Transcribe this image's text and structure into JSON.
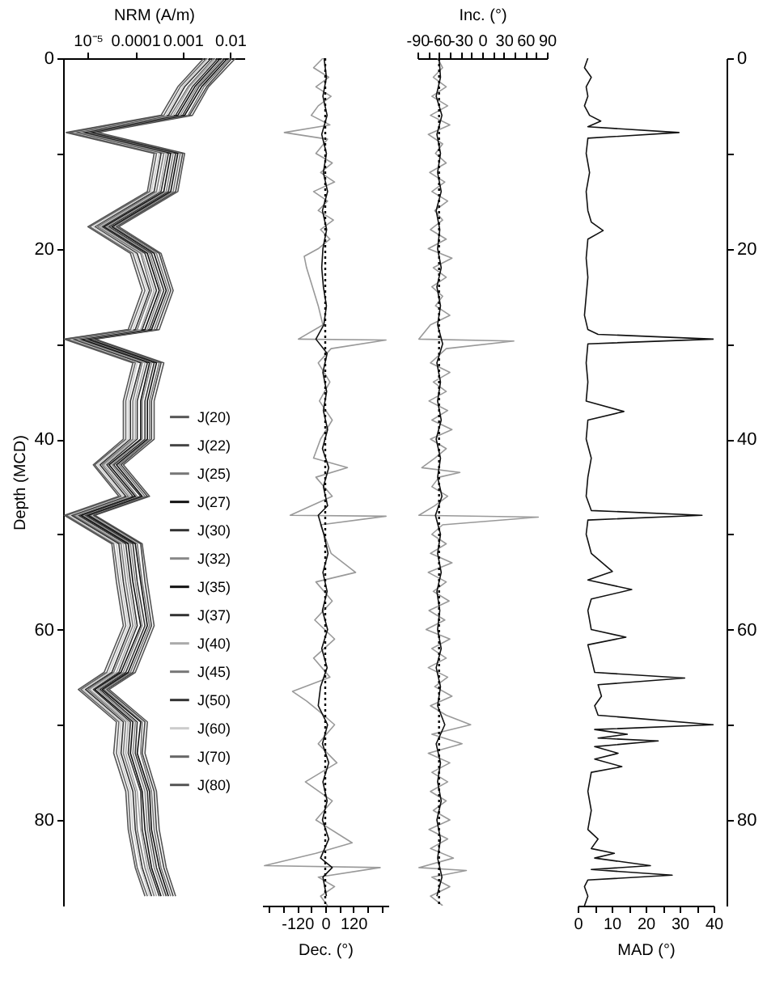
{
  "chart_data": [
    {
      "type": "line",
      "orientation": "horizontal",
      "log": "x",
      "xlabel": "NRM (A/m)",
      "ylabel": "Depth (MCD)",
      "xlim": [
        3e-06,
        0.02
      ],
      "xticks": [
        {
          "value": 1e-05,
          "label": "10⁻⁵"
        },
        0.0001,
        0.001,
        0.01
      ],
      "ylim": [
        89,
        0
      ],
      "yticks": [
        0,
        {
          "value": 10,
          "label": null
        },
        20,
        {
          "value": 30,
          "label": null
        },
        40,
        {
          "value": 50,
          "label": null
        },
        60,
        {
          "value": 70,
          "label": null
        },
        80
      ],
      "legend": "right",
      "x": [
        0,
        3,
        6,
        7.8,
        10,
        14,
        17.7,
        20.5,
        24.4,
        28.5,
        29.5,
        32,
        36,
        40,
        42.7,
        46,
        48,
        51,
        55,
        59.6,
        64.5,
        66.3,
        69.7,
        73,
        77,
        81,
        85,
        88
      ],
      "series": [
        {
          "name": "J(20)",
          "color": "#555555",
          "values": [
            0.013,
            0.0035,
            0.0016,
            1.6e-05,
            0.0011,
            0.00079,
            4.5e-05,
            0.00035,
            0.00063,
            0.00032,
            1.4e-05,
            0.0004,
            0.00025,
            0.00025,
            5.6e-05,
            0.0002,
            1.4e-05,
            0.00014,
            0.00018,
            0.00025,
            0.0001,
            2.8e-05,
            0.00018,
            0.00016,
            0.00028,
            0.00032,
            0.00045,
            0.00071
          ]
        },
        {
          "name": "J(22)",
          "color": "#444444",
          "values": [
            0.011,
            0.0032,
            0.0014,
            1.4e-05,
            0.001,
            0.00071,
            4e-05,
            0.00032,
            0.00056,
            0.00028,
            1.3e-05,
            0.00035,
            0.00022,
            0.00022,
            5e-05,
            0.00018,
            1.3e-05,
            0.00013,
            0.00016,
            0.00022,
            8.9e-05,
            2.5e-05,
            0.00016,
            0.00014,
            0.00025,
            0.00028,
            0.0004,
            0.00063
          ]
        },
        {
          "name": "J(25)",
          "color": "#777777",
          "values": [
            0.01,
            0.0028,
            0.0013,
            1.3e-05,
            0.00089,
            0.00063,
            3.5e-05,
            0.00028,
            0.0005,
            0.00025,
            1.1e-05,
            0.00032,
            0.0002,
            0.0002,
            4.5e-05,
            0.00016,
            1.1e-05,
            0.00011,
            0.00014,
            0.0002,
            7.9e-05,
            2.2e-05,
            0.00014,
            0.00013,
            0.00022,
            0.00025,
            0.00035,
            0.00056
          ]
        },
        {
          "name": "J(27)",
          "color": "#111111",
          "values": [
            0.0089,
            0.0025,
            0.0011,
            1.1e-05,
            0.00079,
            0.00056,
            3.2e-05,
            0.00025,
            0.00045,
            0.00022,
            1e-05,
            0.00028,
            0.00018,
            0.00018,
            4e-05,
            0.00014,
            1e-05,
            0.0001,
            0.00013,
            0.00018,
            7.1e-05,
            2e-05,
            0.00013,
            0.00011,
            0.0002,
            0.00022,
            0.00032,
            0.0005
          ]
        },
        {
          "name": "J(30)",
          "color": "#333333",
          "values": [
            0.0079,
            0.0022,
            0.001,
            1e-05,
            0.00071,
            0.0005,
            2.8e-05,
            0.00022,
            0.0004,
            0.0002,
            8.9e-06,
            0.00025,
            0.00016,
            0.00016,
            3.5e-05,
            0.00013,
            8.9e-06,
            8.9e-05,
            0.00011,
            0.00016,
            6.3e-05,
            1.8e-05,
            0.00011,
            0.0001,
            0.00018,
            0.0002,
            0.00028,
            0.00045
          ]
        },
        {
          "name": "J(32)",
          "color": "#888888",
          "values": [
            0.0071,
            0.002,
            0.00089,
            8.9e-06,
            0.00063,
            0.00045,
            2.5e-05,
            0.0002,
            0.00035,
            0.00018,
            7.9e-06,
            0.00022,
            0.00014,
            0.00014,
            3.2e-05,
            0.00011,
            7.9e-06,
            7.9e-05,
            0.0001,
            0.00014,
            5.6e-05,
            1.6e-05,
            0.0001,
            8.9e-05,
            0.00016,
            0.00018,
            0.00025,
            0.0004
          ]
        },
        {
          "name": "J(35)",
          "color": "#111111",
          "values": [
            0.0063,
            0.0018,
            0.00079,
            7.9e-06,
            0.00056,
            0.0004,
            2.2e-05,
            0.00018,
            0.00032,
            0.00016,
            7.1e-06,
            0.0002,
            0.00013,
            0.00013,
            2.8e-05,
            0.0001,
            7.1e-06,
            7.1e-05,
            8.9e-05,
            0.00013,
            5e-05,
            1.4e-05,
            8.9e-05,
            7.9e-05,
            0.00014,
            0.00016,
            0.00022,
            0.00035
          ]
        },
        {
          "name": "J(37)",
          "color": "#333333",
          "values": [
            0.0056,
            0.0016,
            0.00071,
            7.1e-06,
            0.0005,
            0.00035,
            2e-05,
            0.00016,
            0.00028,
            0.00014,
            6.3e-06,
            0.00018,
            0.00011,
            0.00011,
            2.5e-05,
            8.9e-05,
            6.3e-06,
            6.3e-05,
            7.9e-05,
            0.00011,
            4.5e-05,
            1.3e-05,
            7.9e-05,
            7.1e-05,
            0.00013,
            0.00014,
            0.0002,
            0.00032
          ]
        },
        {
          "name": "J(40)",
          "color": "#aaaaaa",
          "values": [
            0.005,
            0.0014,
            0.00063,
            6.3e-06,
            0.00045,
            0.00032,
            1.8e-05,
            0.00014,
            0.00025,
            0.00013,
            5.6e-06,
            0.00016,
            0.0001,
            0.0001,
            2.2e-05,
            7.9e-05,
            5.6e-06,
            5.6e-05,
            7.1e-05,
            0.0001,
            4e-05,
            1.1e-05,
            7.1e-05,
            6.3e-05,
            0.00011,
            0.00013,
            0.00018,
            0.00028
          ]
        },
        {
          "name": "J(45)",
          "color": "#777777",
          "values": [
            0.0045,
            0.0013,
            0.00056,
            5.6e-06,
            0.0004,
            0.00028,
            1.6e-05,
            0.00013,
            0.00022,
            0.00011,
            5e-06,
            0.00014,
            8.9e-05,
            8.9e-05,
            2e-05,
            7.1e-05,
            5e-06,
            5e-05,
            6.3e-05,
            8.9e-05,
            3.5e-05,
            1e-05,
            6.3e-05,
            5.6e-05,
            0.0001,
            0.00011,
            0.00016,
            0.00025
          ]
        },
        {
          "name": "J(50)",
          "color": "#333333",
          "values": [
            0.004,
            0.0011,
            0.0005,
            5e-06,
            0.00035,
            0.00025,
            1.4e-05,
            0.00011,
            0.0002,
            0.0001,
            4.5e-06,
            0.00013,
            7.9e-05,
            7.9e-05,
            1.8e-05,
            6.3e-05,
            4.5e-06,
            4.5e-05,
            5.6e-05,
            7.9e-05,
            3.2e-05,
            8.9e-06,
            5.6e-05,
            5e-05,
            8.9e-05,
            0.0001,
            0.00014,
            0.00022
          ]
        },
        {
          "name": "J(60)",
          "color": "#cccccc",
          "values": [
            0.0035,
            0.001,
            0.00045,
            4.5e-06,
            0.00032,
            0.00022,
            1.3e-05,
            0.0001,
            0.00018,
            8.9e-05,
            4e-06,
            0.00011,
            7.1e-05,
            7.1e-05,
            1.6e-05,
            5.6e-05,
            4e-06,
            4e-05,
            5e-05,
            7.1e-05,
            2.8e-05,
            7.9e-06,
            5e-05,
            4.5e-05,
            7.9e-05,
            8.9e-05,
            0.00013,
            0.0002
          ]
        },
        {
          "name": "J(70)",
          "color": "#666666",
          "values": [
            0.0032,
            0.00089,
            0.0004,
            4e-06,
            0.00028,
            0.0002,
            1.1e-05,
            8.9e-05,
            0.00016,
            7.9e-05,
            3.5e-06,
            0.0001,
            6.3e-05,
            6.3e-05,
            1.4e-05,
            5e-05,
            3.5e-06,
            3.5e-05,
            4.5e-05,
            6.3e-05,
            2.5e-05,
            7.1e-06,
            4.5e-05,
            4e-05,
            7.1e-05,
            7.9e-05,
            0.00011,
            0.00018
          ]
        },
        {
          "name": "J(80)",
          "color": "#555555",
          "values": [
            0.0028,
            0.00079,
            0.00035,
            3.5e-06,
            0.00025,
            0.00018,
            1e-05,
            7.9e-05,
            0.00014,
            7.1e-05,
            3.2e-06,
            8.9e-05,
            5.6e-05,
            5.6e-05,
            1.3e-05,
            4.5e-05,
            3.2e-06,
            3.2e-05,
            4e-05,
            5.6e-05,
            2.2e-05,
            6.3e-06,
            4e-05,
            3.5e-05,
            6.3e-05,
            7.1e-05,
            0.0001,
            0.00016
          ]
        }
      ]
    },
    {
      "type": "line",
      "orientation": "horizontal",
      "xlabel": "Dec. (°)",
      "xlim": [
        -270,
        270
      ],
      "xticks": [
        {
          "value": -240,
          "label": null
        },
        {
          "value": -180,
          "label": null
        },
        -120,
        {
          "value": -60,
          "label": null
        },
        0,
        {
          "value": 60,
          "label": null
        },
        120,
        {
          "value": 180,
          "label": null
        },
        {
          "value": 240,
          "label": null
        }
      ],
      "ylim": [
        89,
        0
      ],
      "tick_labels": "x",
      "ref_lines": [
        {
          "axis": "x",
          "value": 0,
          "color": "#000000",
          "line_style": "dotted"
        }
      ],
      "series": [
        {
          "color": "#999999",
          "x": [
            0,
            1,
            2,
            3,
            4,
            5,
            6,
            7,
            7.8,
            8.5,
            10,
            11,
            12,
            13,
            14,
            15,
            16,
            17,
            18,
            19,
            20,
            20.8,
            22,
            24,
            26,
            28,
            29.5,
            29.6,
            30.5,
            32,
            34,
            36,
            38,
            40,
            42,
            43,
            44,
            46,
            48,
            48.1,
            49,
            52,
            54,
            55,
            57,
            59,
            61,
            63,
            65,
            66.5,
            67.5,
            68.5,
            70,
            72,
            74,
            76,
            78,
            80,
            82.4,
            83.5,
            84.8,
            85,
            86,
            87,
            88,
            89
          ],
          "values": [
            -10,
            -50,
            15,
            -40,
            25,
            -30,
            -60,
            20,
            -175,
            10,
            -40,
            30,
            -20,
            40,
            -50,
            10,
            -30,
            35,
            -20,
            20,
            -30,
            -90,
            -80,
            -55,
            -30,
            -10,
            -115,
            260,
            25,
            -30,
            20,
            -25,
            30,
            -20,
            -50,
            95,
            -40,
            30,
            -150,
            260,
            -20,
            25,
            130,
            -40,
            30,
            -45,
            40,
            -50,
            20,
            -140,
            -80,
            -30,
            40,
            -30,
            50,
            -85,
            30,
            -40,
            115,
            -40,
            -260,
            235,
            -30,
            40,
            -20,
            10
          ]
        },
        {
          "color": "#111111",
          "x": [
            0,
            2,
            4,
            6,
            8,
            10,
            12,
            14,
            16,
            18,
            20,
            22,
            24,
            26,
            28,
            29.5,
            31,
            33,
            35,
            37,
            39,
            41,
            43,
            45,
            47,
            48,
            50,
            52,
            54,
            56,
            58,
            60,
            62,
            64,
            66,
            68,
            70,
            72,
            74,
            76,
            78,
            80,
            82,
            84,
            85,
            86,
            88
          ],
          "values": [
            -5,
            5,
            -10,
            8,
            -15,
            5,
            -8,
            10,
            -12,
            6,
            -10,
            -15,
            -8,
            5,
            -6,
            -40,
            8,
            -10,
            6,
            -8,
            10,
            -12,
            15,
            -8,
            10,
            -30,
            -6,
            12,
            -10,
            8,
            -12,
            10,
            -15,
            8,
            -20,
            -30,
            10,
            -12,
            15,
            -10,
            8,
            -12,
            15,
            -20,
            30,
            -10,
            5
          ]
        }
      ]
    },
    {
      "type": "line",
      "orientation": "horizontal",
      "xlabel": "Inc. (°)",
      "xlim": [
        -90,
        90
      ],
      "xticks": [
        -90,
        {
          "value": -75,
          "label": null
        },
        -60,
        {
          "value": -45,
          "label": null
        },
        -30,
        {
          "value": -15,
          "label": null
        },
        0,
        {
          "value": 15,
          "label": null
        },
        30,
        {
          "value": 45,
          "label": null
        },
        60,
        {
          "value": 75,
          "label": null
        },
        90
      ],
      "ylim": [
        89,
        0
      ],
      "tick_labels": "x",
      "ref_lines": [
        {
          "axis": "x",
          "value": -60,
          "color": "#000000",
          "line_style": "dotted"
        }
      ],
      "series": [
        {
          "color": "#999999",
          "x": [
            0,
            1,
            2,
            3,
            4,
            5,
            6,
            7,
            8,
            9,
            10,
            11,
            12,
            13,
            14,
            15,
            16,
            17,
            18,
            19,
            20,
            21,
            22,
            23,
            24,
            25,
            26,
            27,
            28,
            29.5,
            29.7,
            30.5,
            32,
            33,
            34,
            35,
            36,
            37,
            38,
            39,
            40,
            41,
            42,
            43,
            43.5,
            44,
            45,
            46,
            47,
            48,
            48.2,
            49,
            50,
            51,
            52,
            53,
            54,
            55,
            56,
            57,
            58,
            59,
            60,
            61,
            62,
            63,
            64,
            65,
            66,
            67,
            68,
            69,
            70,
            71,
            72,
            73,
            74,
            75,
            76,
            77,
            78,
            79,
            80,
            81,
            82,
            83,
            84,
            85,
            85.3,
            86,
            87,
            88,
            89
          ],
          "values": [
            -62,
            -55,
            -68,
            -50,
            -70,
            -48,
            -72,
            -45,
            -75,
            -55,
            -65,
            -50,
            -73,
            -52,
            -70,
            -48,
            -66,
            -55,
            -72,
            -50,
            -75,
            -42,
            -68,
            -50,
            -70,
            -55,
            -65,
            -45,
            -72,
            -88,
            44,
            -50,
            -72,
            -45,
            -68,
            -50,
            -74,
            -48,
            -70,
            -42,
            -72,
            -50,
            -66,
            -84,
            -31,
            -60,
            -70,
            -48,
            -66,
            -88,
            78,
            -55,
            -70,
            -50,
            -72,
            -42,
            -75,
            -50,
            -68,
            -46,
            -74,
            -52,
            -78,
            -45,
            -70,
            -50,
            -75,
            -48,
            -66,
            -42,
            -72,
            -50,
            -16,
            -70,
            -28,
            -75,
            -45,
            -70,
            -48,
            -72,
            -50,
            -68,
            -45,
            -74,
            -48,
            -72,
            -40,
            -88,
            -22,
            -70,
            -45,
            -72,
            -55
          ]
        },
        {
          "color": "#111111",
          "x": [
            0,
            2,
            4,
            6,
            8,
            10,
            12,
            14,
            16,
            18,
            20,
            22,
            24,
            26,
            28,
            30,
            32,
            34,
            36,
            38,
            40,
            42,
            44,
            46,
            48,
            50,
            52,
            54,
            56,
            58,
            60,
            62,
            64,
            66,
            68,
            70,
            72,
            74,
            76,
            78,
            80,
            82,
            84,
            86,
            88
          ],
          "values": [
            -60,
            -58,
            -64,
            -56,
            -63,
            -58,
            -62,
            -57,
            -64,
            -59,
            -62,
            -57,
            -63,
            -58,
            -62,
            -55,
            -63,
            -58,
            -62,
            -57,
            -64,
            -58,
            -62,
            -56,
            -65,
            -58,
            -62,
            -57,
            -63,
            -59,
            -62,
            -57,
            -64,
            -58,
            -62,
            -52,
            -64,
            -58,
            -62,
            -57,
            -63,
            -58,
            -62,
            -56,
            -63
          ]
        }
      ]
    },
    {
      "type": "line",
      "orientation": "horizontal",
      "xlabel": "MAD (°)",
      "xlim": [
        0,
        40
      ],
      "xticks": [
        0,
        {
          "value": 5,
          "label": null
        },
        10,
        {
          "value": 15,
          "label": null
        },
        20,
        {
          "value": 25,
          "label": null
        },
        30,
        {
          "value": 35,
          "label": null
        },
        40
      ],
      "ylim": [
        89,
        0
      ],
      "yticks": [
        0,
        {
          "value": 10,
          "label": null
        },
        20,
        {
          "value": 30,
          "label": null
        },
        40,
        {
          "value": 50,
          "label": null
        },
        60,
        {
          "value": 70,
          "label": null
        },
        80
      ],
      "series": [
        {
          "color": "#111111",
          "x": [
            0,
            1,
            2,
            3,
            4,
            5,
            6,
            6.6,
            7.2,
            7.8,
            8.4,
            10,
            12,
            14,
            16,
            17.2,
            18.1,
            19,
            21,
            23,
            25,
            27,
            28.5,
            29,
            29.5,
            30,
            32,
            34,
            36,
            37.1,
            38,
            40,
            42,
            44,
            46,
            47.5,
            48,
            48.5,
            50,
            52,
            53.9,
            54.8,
            55.8,
            56.8,
            58,
            60,
            60.8,
            61.6,
            63,
            64.5,
            65.1,
            65.8,
            67,
            68,
            69,
            70,
            70.5,
            71,
            71.4,
            71.7,
            72.3,
            73,
            73.6,
            74.4,
            75,
            77,
            79,
            81,
            82,
            83,
            83.5,
            84,
            84.8,
            85.2,
            85.8,
            86.3,
            87,
            88,
            89
          ],
          "values": [
            3,
            2,
            4,
            2.5,
            3,
            2,
            3.5,
            6.8,
            3,
            29.8,
            3,
            2.5,
            3.5,
            2.5,
            3,
            4,
            7.5,
            3,
            2.5,
            3,
            2.5,
            2,
            3,
            6,
            40,
            3,
            2.5,
            3,
            2.5,
            13.6,
            3,
            2.5,
            4,
            3,
            2.5,
            4,
            36.6,
            3,
            2.5,
            4,
            10.2,
            3,
            15.9,
            4,
            3,
            4,
            14.2,
            3,
            4,
            5,
            31.5,
            6,
            7,
            5,
            6,
            40,
            5,
            14.6,
            6,
            23.7,
            5,
            11.9,
            5,
            13,
            4,
            3,
            4,
            3,
            6,
            4,
            10.8,
            5,
            21.4,
            4,
            27.8,
            3,
            2,
            3,
            2
          ]
        }
      ]
    }
  ]
}
